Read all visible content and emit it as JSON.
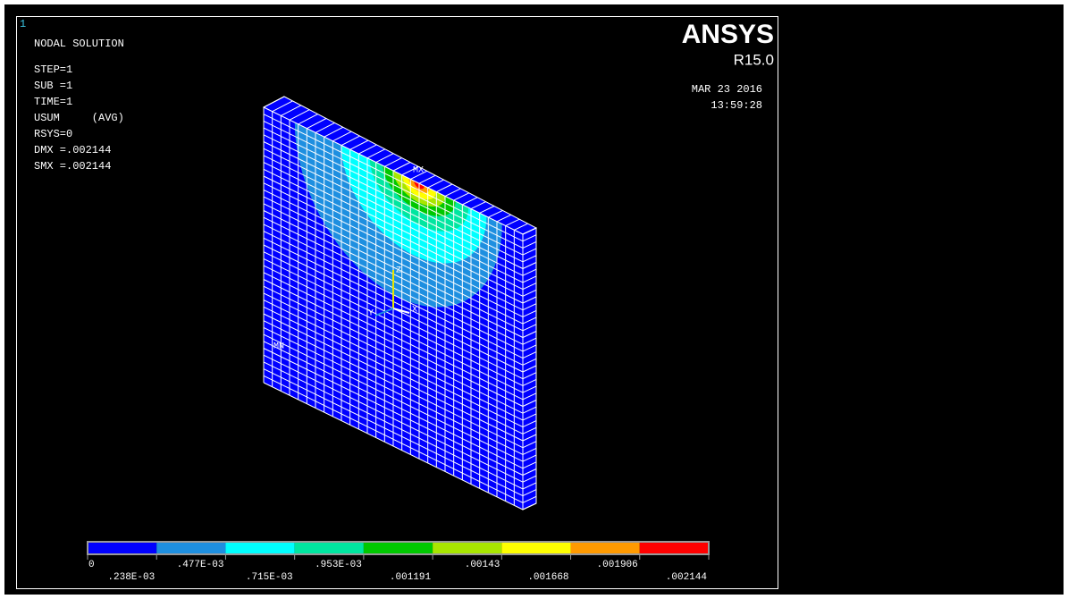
{
  "window_id": "1",
  "info": {
    "title": "NODAL SOLUTION",
    "lines": [
      "STEP=1",
      "SUB =1",
      "TIME=1",
      "USUM     (AVG)",
      "RSYS=0",
      "DMX =.002144",
      "SMX =.002144"
    ]
  },
  "logo": {
    "name": "ANSYS",
    "version": "R15.0"
  },
  "date": "MAR 23 2016",
  "time": "13:59:28",
  "model_labels": {
    "max": "MX",
    "min": "MN",
    "axes": [
      "Y",
      "Z",
      "X"
    ]
  },
  "legend": {
    "labels": [
      "0",
      ".238E-03",
      ".477E-03",
      ".715E-03",
      ".953E-03",
      ".001191",
      ".00143",
      ".001668",
      ".001906",
      ".002144"
    ],
    "colors": [
      "#0000ff",
      "#1e8fe0",
      "#00ffff",
      "#00e6a0",
      "#00c800",
      "#a8e600",
      "#ffff00",
      "#ff9a00",
      "#ff0000"
    ]
  }
}
